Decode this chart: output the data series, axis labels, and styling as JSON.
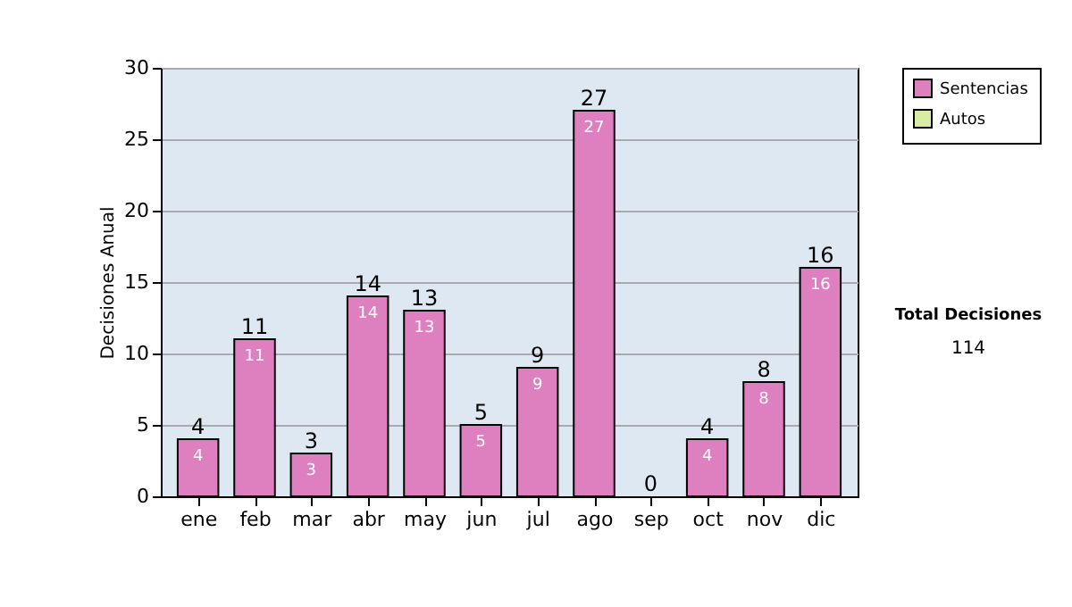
{
  "chart_data": {
    "type": "bar",
    "stacked": true,
    "ylabel": "Decisiones Anual",
    "categories": [
      "ene",
      "feb",
      "mar",
      "abr",
      "may",
      "jun",
      "jul",
      "ago",
      "sep",
      "oct",
      "nov",
      "dic"
    ],
    "series": [
      {
        "name": "Sentencias",
        "color": "#de7fc0",
        "values": [
          4,
          11,
          3,
          14,
          13,
          5,
          9,
          27,
          0,
          4,
          8,
          16
        ],
        "value_labels": [
          "4",
          "11",
          "3",
          "14",
          "13",
          "5",
          "9",
          "27",
          null,
          "4",
          "8",
          "16"
        ]
      },
      {
        "name": "Autos",
        "color": "#d9eca4",
        "values": [
          0,
          0,
          0,
          0,
          0,
          0,
          0,
          0,
          0,
          0,
          0,
          0
        ]
      }
    ],
    "totals": [
      "4",
      "11",
      "3",
      "14",
      "13",
      "5",
      "9",
      "27",
      "0",
      "4",
      "8",
      "16"
    ],
    "ylim": [
      0,
      30
    ],
    "yticks": [
      0,
      5,
      10,
      15,
      20,
      25,
      30
    ],
    "grid": "y",
    "legend": "right",
    "annotations": [
      "Total Decisiones",
      "114"
    ]
  }
}
